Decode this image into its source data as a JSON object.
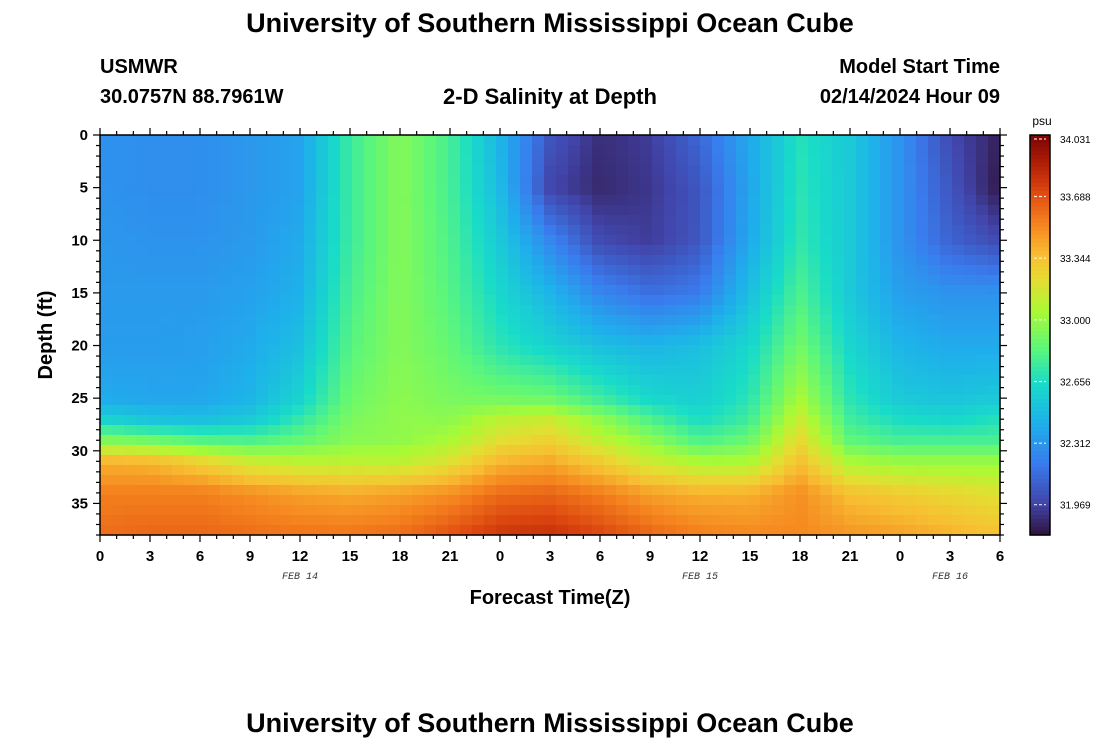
{
  "page": {
    "title": "University of Southern Mississippi Ocean Cube",
    "footer_title": "University of Southern Mississippi Ocean Cube",
    "station_id": "USMWR",
    "station_coords": "30.0757N  88.7961W",
    "plot_title": "2-D Salinity at Depth",
    "model_start_label": "Model Start Time",
    "model_start_value": "02/14/2024 Hour 09"
  },
  "chart_data": {
    "type": "heatmap",
    "title": "2-D Salinity at Depth",
    "xlabel": "Forecast Time(Z)",
    "ylabel": "Depth (ft)",
    "x_ticks": [
      "0",
      "3",
      "6",
      "9",
      "12",
      "15",
      "18",
      "21",
      "0",
      "3",
      "6",
      "9",
      "12",
      "15",
      "18",
      "21",
      "0",
      "3",
      "6"
    ],
    "x_range_hours": [
      0,
      54
    ],
    "date_labels": [
      {
        "text": "FEB 14",
        "hour": 12
      },
      {
        "text": "FEB 15",
        "hour": 36
      },
      {
        "text": "FEB 16",
        "hour": 51
      }
    ],
    "y_ticks": [
      0,
      5,
      10,
      15,
      20,
      25,
      30,
      35
    ],
    "y_range": [
      0,
      38
    ],
    "colorbar": {
      "unit": "psu",
      "min": 31.8,
      "max": 34.031,
      "tick_labels": [
        "34.031",
        "33.688",
        "33.344",
        "33.000",
        "32.656",
        "32.312",
        "31.969"
      ],
      "tick_values": [
        34.031,
        33.688,
        33.344,
        33.0,
        32.656,
        32.312,
        31.969
      ]
    },
    "times_hours": [
      0,
      3,
      6,
      9,
      12,
      15,
      18,
      21,
      24,
      27,
      30,
      33,
      36,
      39,
      42,
      45,
      48,
      51,
      54
    ],
    "depth_levels_ft": [
      0,
      5,
      10,
      15,
      20,
      25,
      27,
      29,
      31,
      34,
      38
    ],
    "salinity": [
      [
        32.3,
        32.28,
        32.28,
        32.32,
        32.37,
        32.75,
        32.95,
        32.78,
        32.45,
        32.05,
        31.9,
        31.95,
        32.12,
        32.4,
        32.68,
        32.55,
        32.3,
        32.0,
        31.85
      ],
      [
        32.3,
        32.28,
        32.28,
        32.32,
        32.37,
        32.75,
        32.95,
        32.78,
        32.48,
        31.98,
        31.88,
        31.93,
        32.05,
        32.38,
        32.7,
        32.55,
        32.3,
        32.05,
        31.82
      ],
      [
        32.32,
        32.3,
        32.3,
        32.33,
        32.4,
        32.75,
        32.95,
        32.8,
        32.55,
        32.25,
        32.0,
        31.95,
        32.05,
        32.4,
        32.72,
        32.55,
        32.3,
        32.1,
        32.0
      ],
      [
        32.33,
        32.33,
        32.33,
        32.36,
        32.43,
        32.78,
        32.95,
        32.82,
        32.62,
        32.45,
        32.25,
        32.15,
        32.2,
        32.5,
        32.8,
        32.55,
        32.35,
        32.3,
        32.3
      ],
      [
        32.34,
        32.34,
        32.35,
        32.4,
        32.5,
        32.82,
        32.95,
        32.86,
        32.7,
        32.6,
        32.5,
        32.45,
        32.5,
        32.62,
        32.9,
        32.62,
        32.45,
        32.4,
        32.4
      ],
      [
        32.4,
        32.38,
        32.38,
        32.45,
        32.6,
        32.88,
        32.97,
        32.92,
        32.9,
        32.88,
        32.75,
        32.62,
        32.58,
        32.7,
        33.05,
        32.7,
        32.55,
        32.52,
        32.55
      ],
      [
        32.6,
        32.52,
        32.5,
        32.55,
        32.72,
        32.92,
        32.98,
        32.97,
        33.1,
        33.15,
        32.98,
        32.8,
        32.65,
        32.76,
        33.15,
        32.76,
        32.65,
        32.62,
        32.68
      ],
      [
        32.95,
        32.9,
        32.82,
        32.8,
        32.86,
        32.96,
        32.98,
        33.05,
        33.22,
        33.28,
        33.12,
        32.98,
        32.8,
        32.88,
        33.25,
        32.85,
        32.78,
        32.78,
        32.78
      ],
      [
        33.4,
        33.38,
        33.28,
        33.15,
        33.1,
        33.1,
        33.1,
        33.2,
        33.38,
        33.42,
        33.3,
        33.15,
        33.05,
        33.05,
        33.35,
        33.05,
        33.0,
        33.0,
        33.0
      ],
      [
        33.55,
        33.55,
        33.55,
        33.5,
        33.45,
        33.42,
        33.45,
        33.5,
        33.6,
        33.62,
        33.55,
        33.45,
        33.4,
        33.4,
        33.5,
        33.35,
        33.3,
        33.25,
        33.2
      ],
      [
        33.6,
        33.62,
        33.62,
        33.6,
        33.58,
        33.58,
        33.6,
        33.68,
        33.78,
        33.8,
        33.72,
        33.62,
        33.55,
        33.52,
        33.52,
        33.48,
        33.45,
        33.4,
        33.35
      ]
    ]
  }
}
